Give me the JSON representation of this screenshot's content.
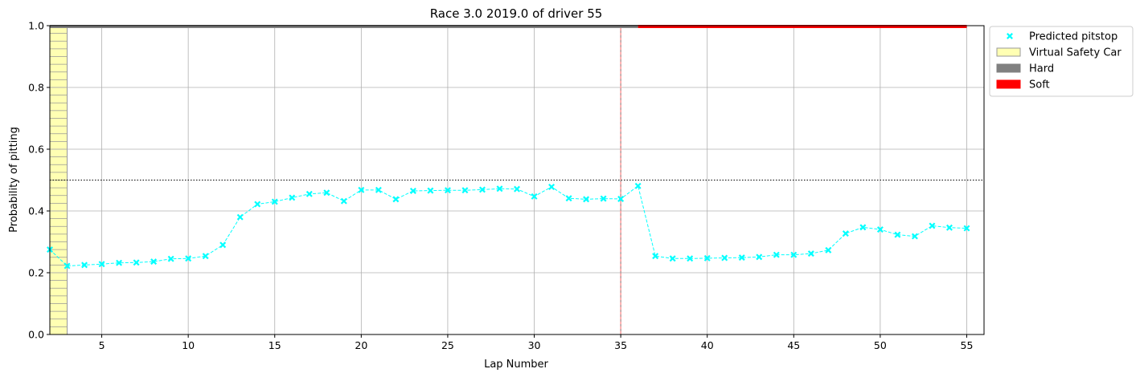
{
  "chart_data": {
    "type": "line",
    "title": "Race 3.0 2019.0 of driver 55",
    "xlabel": "Lap Number",
    "ylabel": "Probability of pitting",
    "xlim": [
      2,
      56
    ],
    "ylim": [
      0,
      1
    ],
    "x_ticks": [
      5,
      10,
      15,
      20,
      25,
      30,
      35,
      40,
      45,
      50,
      55
    ],
    "y_ticks": [
      0.0,
      0.2,
      0.4,
      0.6,
      0.8,
      1.0
    ],
    "y_tick_labels": [
      "0.0",
      "0.2",
      "0.4",
      "0.6",
      "0.8",
      "1.0"
    ],
    "grid": true,
    "threshold": 0.5,
    "pit_lap": 35,
    "legend_position": "outside-top-right",
    "series": [
      {
        "name": "Predicted pitstop",
        "color": "#00ffff",
        "marker": "x",
        "x": [
          2,
          3,
          4,
          5,
          6,
          7,
          8,
          9,
          10,
          11,
          12,
          13,
          14,
          15,
          16,
          17,
          18,
          19,
          20,
          21,
          22,
          23,
          24,
          25,
          26,
          27,
          28,
          29,
          30,
          31,
          32,
          33,
          34,
          35,
          36,
          37,
          38,
          39,
          40,
          41,
          42,
          43,
          44,
          45,
          46,
          47,
          48,
          49,
          50,
          51,
          52,
          53,
          54,
          55
        ],
        "y": [
          0.275,
          0.222,
          0.225,
          0.228,
          0.232,
          0.233,
          0.236,
          0.245,
          0.246,
          0.254,
          0.29,
          0.38,
          0.422,
          0.43,
          0.443,
          0.455,
          0.459,
          0.432,
          0.468,
          0.468,
          0.438,
          0.465,
          0.466,
          0.467,
          0.467,
          0.469,
          0.472,
          0.471,
          0.447,
          0.478,
          0.441,
          0.438,
          0.44,
          0.439,
          0.481,
          0.254,
          0.246,
          0.246,
          0.247,
          0.248,
          0.249,
          0.251,
          0.258,
          0.258,
          0.262,
          0.273,
          0.327,
          0.347,
          0.34,
          0.323,
          0.318,
          0.352,
          0.346,
          0.344
        ]
      }
    ],
    "safety_car_periods": [
      {
        "name": "Virtual Safety Car",
        "color": "#ffffb3",
        "edge": "#999999",
        "start": 2,
        "end": 3
      }
    ],
    "tyre_stints": [
      {
        "name": "Hard",
        "color": "#808080",
        "start": 2,
        "end": 36
      },
      {
        "name": "Soft",
        "color": "#ff0000",
        "start": 36,
        "end": 55
      }
    ]
  }
}
